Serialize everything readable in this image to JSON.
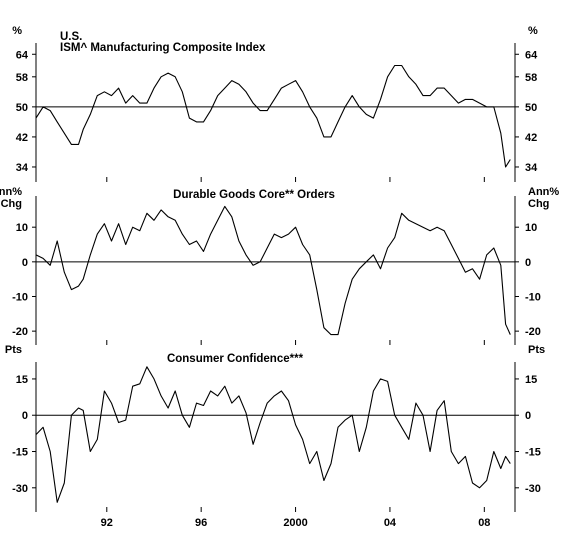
{
  "chart_data": [
    {
      "type": "line",
      "title_line1": "U.S.",
      "title": "ISM^ Manufacturing Composite Index",
      "unit_left": "%",
      "unit_right": "%",
      "ylim": [
        30,
        67
      ],
      "yticks": [
        34,
        42,
        50,
        58,
        64
      ],
      "ytick_labels": [
        "34",
        "42",
        "50",
        "58",
        "64"
      ],
      "reference_line": 50,
      "x": [
        1989.0,
        1989.3,
        1989.6,
        1989.9,
        1990.2,
        1990.5,
        1990.8,
        1991.0,
        1991.3,
        1991.6,
        1991.9,
        1992.2,
        1992.5,
        1992.8,
        1993.1,
        1993.4,
        1993.7,
        1994.0,
        1994.3,
        1994.6,
        1994.9,
        1995.2,
        1995.5,
        1995.8,
        1996.1,
        1996.4,
        1996.7,
        1997.0,
        1997.3,
        1997.6,
        1997.9,
        1998.2,
        1998.5,
        1998.8,
        1999.1,
        1999.4,
        1999.7,
        2000.0,
        2000.3,
        2000.6,
        2000.9,
        2001.2,
        2001.5,
        2001.8,
        2002.1,
        2002.4,
        2002.7,
        2003.0,
        2003.3,
        2003.6,
        2003.9,
        2004.2,
        2004.5,
        2004.8,
        2005.1,
        2005.4,
        2005.7,
        2006.0,
        2006.3,
        2006.6,
        2006.9,
        2007.2,
        2007.5,
        2007.8,
        2008.1,
        2008.4,
        2008.7,
        2008.9,
        2009.1
      ],
      "values": [
        47,
        50,
        49,
        46,
        43,
        40,
        40,
        44,
        48,
        53,
        54,
        53,
        55,
        51,
        53,
        51,
        51,
        55,
        58,
        59,
        58,
        54,
        47,
        46,
        46,
        49,
        53,
        55,
        57,
        56,
        54,
        51,
        49,
        49,
        52,
        55,
        56,
        57,
        54,
        50,
        47,
        42,
        42,
        46,
        50,
        53,
        50,
        48,
        47,
        52,
        58,
        61,
        61,
        58,
        56,
        53,
        53,
        55,
        55,
        53,
        51,
        52,
        52,
        51,
        50,
        50,
        43,
        34,
        36
      ]
    },
    {
      "type": "line",
      "title": "Durable Goods Core** Orders",
      "unit_left": "Ann%\nChg",
      "unit_right": "Ann%\nChg",
      "ylim": [
        -24,
        19
      ],
      "yticks": [
        -20,
        -10,
        0,
        10
      ],
      "ytick_labels": [
        "-20",
        "-10",
        "0",
        "10"
      ],
      "reference_line": 0,
      "x": [
        1989.0,
        1989.3,
        1989.6,
        1989.9,
        1990.2,
        1990.5,
        1990.8,
        1991.0,
        1991.3,
        1991.6,
        1991.9,
        1992.2,
        1992.5,
        1992.8,
        1993.1,
        1993.4,
        1993.7,
        1994.0,
        1994.3,
        1994.6,
        1994.9,
        1995.2,
        1995.5,
        1995.8,
        1996.1,
        1996.4,
        1996.7,
        1997.0,
        1997.3,
        1997.6,
        1997.9,
        1998.2,
        1998.5,
        1998.8,
        1999.1,
        1999.4,
        1999.7,
        2000.0,
        2000.3,
        2000.6,
        2000.9,
        2001.2,
        2001.5,
        2001.8,
        2002.1,
        2002.4,
        2002.7,
        2003.0,
        2003.3,
        2003.6,
        2003.9,
        2004.2,
        2004.5,
        2004.8,
        2005.1,
        2005.4,
        2005.7,
        2006.0,
        2006.3,
        2006.6,
        2006.9,
        2007.2,
        2007.5,
        2007.8,
        2008.1,
        2008.4,
        2008.7,
        2008.9,
        2009.1
      ],
      "values": [
        2,
        1,
        -1,
        6,
        -3,
        -8,
        -7,
        -5,
        2,
        8,
        11,
        6,
        11,
        5,
        10,
        9,
        14,
        12,
        15,
        13,
        12,
        8,
        5,
        6,
        3,
        8,
        12,
        16,
        13,
        6,
        2,
        -1,
        0,
        4,
        8,
        7,
        8,
        10,
        5,
        2,
        -8,
        -19,
        -21,
        -21,
        -12,
        -5,
        -2,
        0,
        2,
        -2,
        4,
        7,
        14,
        12,
        11,
        10,
        9,
        10,
        9,
        5,
        1,
        -3,
        -2,
        -5,
        2,
        4,
        -1,
        -18,
        -21
      ]
    },
    {
      "type": "line",
      "title": "Consumer Confidence***",
      "unit_left": "Pts",
      "unit_right": "Pts",
      "ylim": [
        -40,
        22
      ],
      "yticks": [
        -30,
        -15,
        0,
        15
      ],
      "ytick_labels": [
        "-30",
        "-15",
        "0",
        "15"
      ],
      "reference_line": 0,
      "x": [
        1989.0,
        1989.3,
        1989.6,
        1989.9,
        1990.2,
        1990.5,
        1990.8,
        1991.0,
        1991.3,
        1991.6,
        1991.9,
        1992.2,
        1992.5,
        1992.8,
        1993.1,
        1993.4,
        1993.7,
        1994.0,
        1994.3,
        1994.6,
        1994.9,
        1995.2,
        1995.5,
        1995.8,
        1996.1,
        1996.4,
        1996.7,
        1997.0,
        1997.3,
        1997.6,
        1997.9,
        1998.2,
        1998.5,
        1998.8,
        1999.1,
        1999.4,
        1999.7,
        2000.0,
        2000.3,
        2000.6,
        2000.9,
        2001.2,
        2001.5,
        2001.8,
        2002.1,
        2002.4,
        2002.7,
        2003.0,
        2003.3,
        2003.6,
        2003.9,
        2004.2,
        2004.5,
        2004.8,
        2005.1,
        2005.4,
        2005.7,
        2006.0,
        2006.3,
        2006.6,
        2006.9,
        2007.2,
        2007.5,
        2007.8,
        2008.1,
        2008.4,
        2008.7,
        2008.9,
        2009.1
      ],
      "values": [
        -8,
        -5,
        -15,
        -36,
        -28,
        0,
        3,
        2,
        -15,
        -10,
        10,
        5,
        -3,
        -2,
        12,
        13,
        20,
        15,
        8,
        3,
        10,
        0,
        -5,
        5,
        4,
        10,
        8,
        12,
        5,
        8,
        1,
        -12,
        -3,
        5,
        8,
        10,
        6,
        -4,
        -10,
        -20,
        -15,
        -27,
        -20,
        -5,
        -2,
        0,
        -15,
        -5,
        10,
        15,
        14,
        0,
        -5,
        -10,
        5,
        0,
        -15,
        2,
        6,
        -15,
        -20,
        -17,
        -28,
        -30,
        -27,
        -15,
        -22,
        -17,
        -20
      ]
    }
  ],
  "x_axis": {
    "ticks": [
      1992,
      1996,
      2000,
      2004,
      2008
    ],
    "tick_labels": [
      "92",
      "96",
      "2000",
      "04",
      "08"
    ],
    "xlim": [
      1989.0,
      2009.3
    ]
  }
}
